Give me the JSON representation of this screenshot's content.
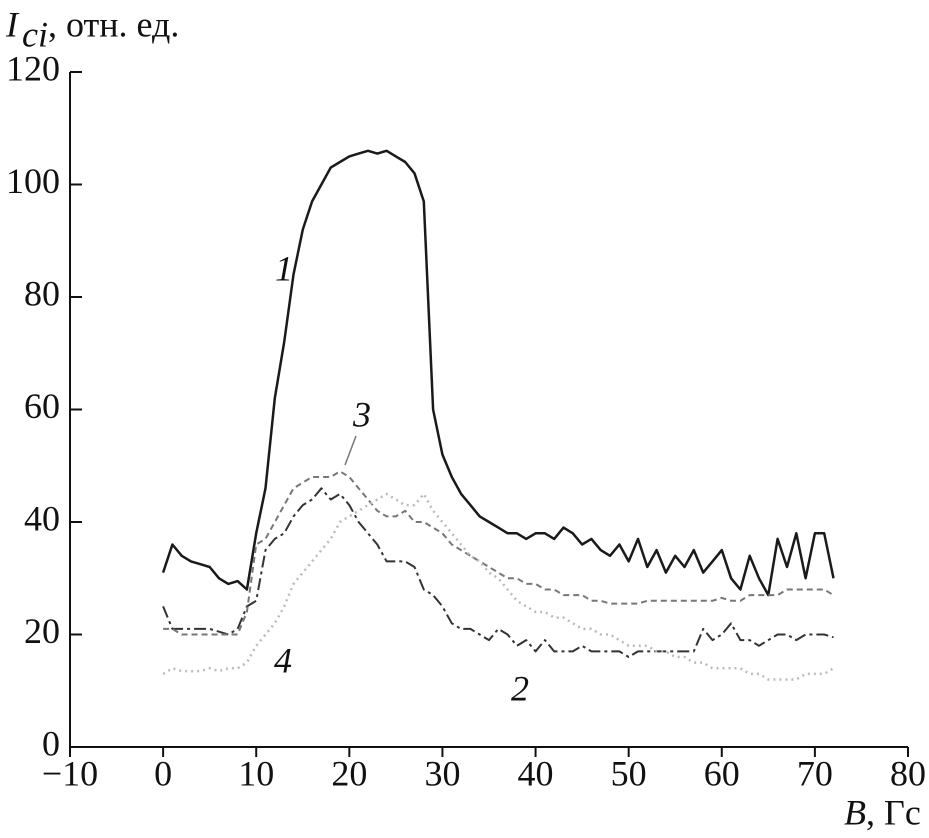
{
  "chart_data": {
    "type": "line",
    "y_label_symbol": "I",
    "y_label_sub": "ci",
    "y_label_unit": ", отн. ед.",
    "x_label_symbol": "B",
    "x_label_unit": ", Гс",
    "xlim": [
      -10,
      80
    ],
    "xticks": [
      {
        "value": -10,
        "label": "−10"
      },
      0,
      10,
      20,
      30,
      40,
      50,
      60,
      70,
      80
    ],
    "ylim": [
      0,
      120
    ],
    "yticks": [
      0,
      20,
      40,
      60,
      80,
      100,
      120
    ],
    "x": [
      0,
      1,
      2,
      3,
      4,
      5,
      6,
      7,
      8,
      9,
      10,
      11,
      12,
      13,
      14,
      15,
      16,
      17,
      18,
      19,
      20,
      21,
      22,
      23,
      24,
      25,
      26,
      27,
      28,
      29,
      30,
      31,
      32,
      33,
      34,
      35,
      36,
      37,
      38,
      39,
      40,
      41,
      42,
      43,
      44,
      45,
      46,
      47,
      48,
      49,
      50,
      51,
      52,
      53,
      54,
      55,
      56,
      57,
      58,
      59,
      60,
      61,
      62,
      63,
      64,
      65,
      66,
      67,
      68,
      69,
      70,
      71,
      72
    ],
    "series": [
      {
        "name": "1",
        "color": "#1a1a1a",
        "dash": "solid",
        "values": [
          31,
          36,
          34,
          33,
          32.5,
          32,
          30,
          29,
          29.5,
          28,
          38,
          46,
          62,
          72,
          84,
          92,
          97,
          100,
          103,
          104,
          105,
          105.5,
          106,
          105.5,
          106,
          105,
          104,
          102,
          97,
          60,
          52,
          48,
          45,
          43,
          41,
          40,
          39,
          38,
          38,
          37,
          38,
          38,
          37,
          39,
          38,
          36,
          37,
          35,
          34,
          36,
          33,
          37,
          32,
          35,
          31,
          34,
          32,
          35,
          31,
          33,
          35,
          30,
          28,
          34,
          30,
          27,
          37,
          32,
          38,
          30,
          38,
          38,
          30
        ]
      },
      {
        "name": "2",
        "color": "#333333",
        "dash": "dashdot",
        "values": [
          25,
          21,
          21,
          21,
          21,
          21,
          20.5,
          20,
          21,
          25,
          26,
          35,
          37,
          38,
          41,
          43,
          44,
          46,
          44,
          45,
          43,
          40,
          38,
          36,
          33,
          33,
          33,
          32,
          28,
          27,
          25,
          22,
          21,
          21,
          20,
          19,
          21,
          20,
          18,
          19,
          17,
          19,
          17,
          17,
          17,
          18,
          17,
          17,
          17,
          17,
          16,
          17,
          17,
          17,
          17,
          17,
          17,
          17,
          21,
          19,
          20,
          22,
          19,
          19,
          18,
          19,
          20,
          20,
          19,
          20,
          20,
          20,
          19.5
        ]
      },
      {
        "name": "3",
        "color": "#777777",
        "dash": "dashed",
        "values": [
          21,
          21,
          20,
          20,
          20,
          20,
          20,
          20,
          20,
          24,
          36,
          37,
          40,
          43,
          46,
          47,
          48,
          48,
          48,
          49,
          48,
          46,
          44,
          42,
          41,
          41,
          42,
          40,
          40,
          39,
          38,
          36,
          35,
          34,
          33,
          32,
          31,
          30,
          30,
          29,
          29,
          28,
          28,
          27,
          27,
          27,
          26,
          26,
          25.5,
          25.5,
          25.5,
          25.5,
          26,
          26,
          26,
          26,
          26,
          26,
          26,
          26,
          26.5,
          26,
          26,
          27,
          27,
          27,
          27,
          28,
          28,
          28,
          28,
          28,
          27
        ]
      },
      {
        "name": "4",
        "color": "#bbbbbb",
        "dash": "dotted",
        "values": [
          13,
          14,
          13.5,
          13.5,
          13.5,
          14,
          13.5,
          14,
          14,
          15,
          18,
          20,
          22,
          25,
          29,
          31,
          33,
          35,
          37,
          40,
          41,
          42,
          43,
          44,
          45,
          44,
          43,
          43,
          45,
          42,
          40,
          38,
          36,
          34,
          33,
          31,
          30,
          28,
          26,
          25,
          24,
          24,
          23,
          23,
          22,
          21,
          21,
          20,
          20,
          19,
          18,
          18,
          18,
          17,
          17,
          16,
          16,
          15,
          15,
          14,
          14,
          14,
          14,
          13,
          13,
          12,
          12,
          12,
          12,
          13,
          13,
          13,
          14
        ]
      }
    ]
  }
}
